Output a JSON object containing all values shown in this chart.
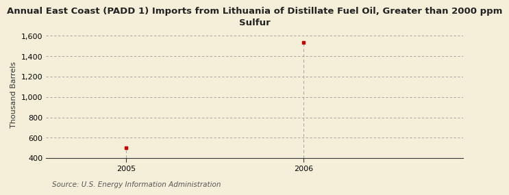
{
  "title": "Annual East Coast (PADD 1) Imports from Lithuania of Distillate Fuel Oil, Greater than 2000 ppm\nSulfur",
  "ylabel": "Thousand Barrels",
  "source": "Source: U.S. Energy Information Administration",
  "x_values": [
    2005,
    2006
  ],
  "y_values": [
    503,
    1537
  ],
  "ylim": [
    400,
    1650
  ],
  "yticks": [
    400,
    600,
    800,
    1000,
    1200,
    1400,
    1600
  ],
  "xlim": [
    2004.55,
    2006.9
  ],
  "xticks": [
    2005,
    2006
  ],
  "marker_color": "#cc0000",
  "bg_color": "#f5efda",
  "grid_color": "#999999",
  "vline_color": "#aaaaaa",
  "spine_color": "#333333",
  "title_fontsize": 9.5,
  "label_fontsize": 8,
  "tick_fontsize": 8,
  "source_fontsize": 7.5
}
